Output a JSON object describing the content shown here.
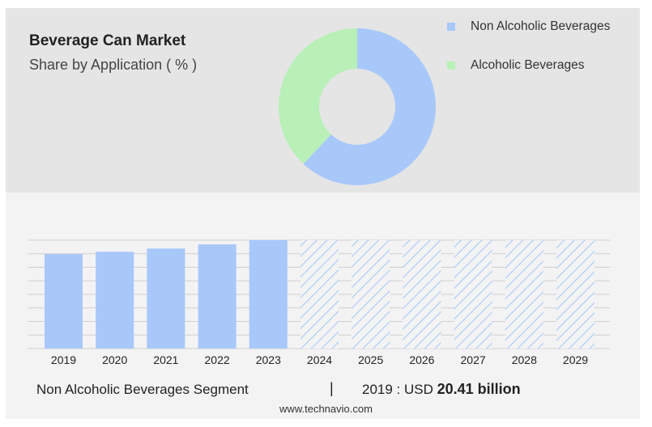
{
  "header": {
    "title": "Beverage Can Market",
    "subtitle": "Share by Application ( % )"
  },
  "colors": {
    "non_alcoholic": "#a8c8fa",
    "alcoholic": "#b8f0b8",
    "forecast_hatch": "#a8c8fa"
  },
  "chart_data": [
    {
      "type": "pie",
      "donut": true,
      "slices": [
        {
          "label": "Non Alcoholic Beverages",
          "value": 62,
          "color": "#a8c8fa"
        },
        {
          "label": "Alcoholic Beverages",
          "value": 38,
          "color": "#b8f0b8"
        }
      ],
      "legend_position": "top-right"
    },
    {
      "type": "bar",
      "categories": [
        "2019",
        "2020",
        "2021",
        "2022",
        "2023",
        "2024",
        "2025",
        "2026",
        "2027",
        "2028",
        "2029"
      ],
      "values": [
        20.41,
        20.9,
        21.6,
        22.5,
        23.4,
        23.4,
        23.4,
        23.4,
        23.4,
        23.4,
        23.4
      ],
      "forecast_from": "2024",
      "ylim": [
        0,
        23.4
      ],
      "grid": true
    }
  ],
  "footer": {
    "segment_label": "Non Alcoholic Beverages Segment",
    "separator": "|",
    "value_prefix": "2019 : USD",
    "value_bold": "20.41 billion"
  },
  "source": "www.technavio.com"
}
